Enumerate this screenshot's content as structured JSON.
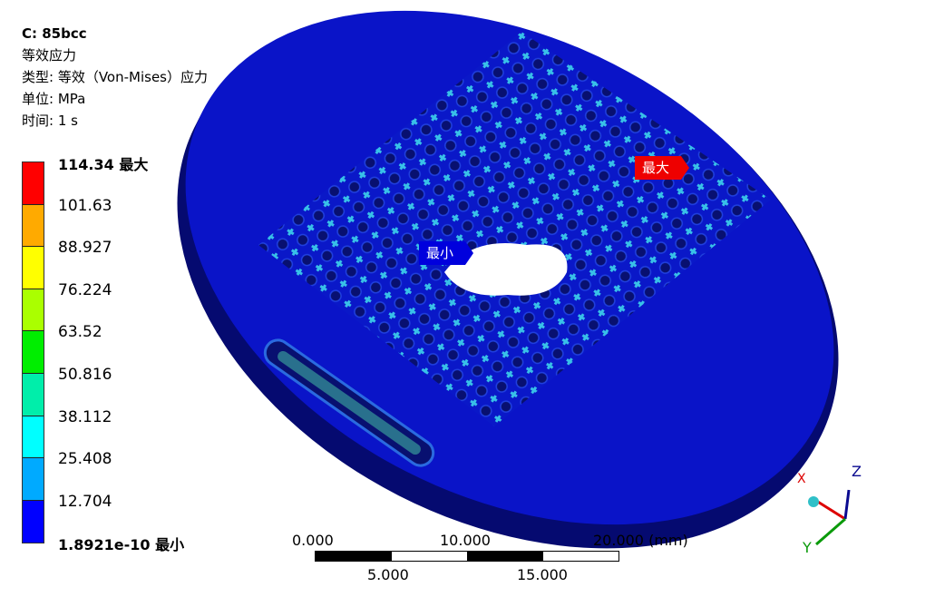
{
  "header": {
    "title": "C: 85bcc",
    "result_name": "等效应力",
    "type": "类型: 等效（Von-Mises）应力",
    "unit": "单位: MPa",
    "time": "时间: 1 s"
  },
  "legend": {
    "labels": [
      "114.34 最大",
      "101.63",
      "88.927",
      "76.224",
      "63.52",
      "50.816",
      "38.112",
      "25.408",
      "12.704",
      "1.8921e-10 最小"
    ],
    "colors": [
      "#ff0000",
      "#ffaa00",
      "#ffff00",
      "#aaff00",
      "#00ee00",
      "#00eeaa",
      "#00ffff",
      "#00aaff",
      "#0000ff"
    ]
  },
  "probes": {
    "max": "最大",
    "min": "最小",
    "max_color": "#ee0000",
    "min_color": "#0000dd"
  },
  "scale": {
    "top": [
      "0.000",
      "10.000",
      "20.000 (mm)"
    ],
    "bottom": [
      "5.000",
      "15.000"
    ]
  },
  "triad": {
    "x": "X",
    "y": "Y",
    "z": "Z"
  },
  "colors": {
    "body": "#0a14c8",
    "body_dark": "#050a6a",
    "hot": "#38d0e0"
  }
}
